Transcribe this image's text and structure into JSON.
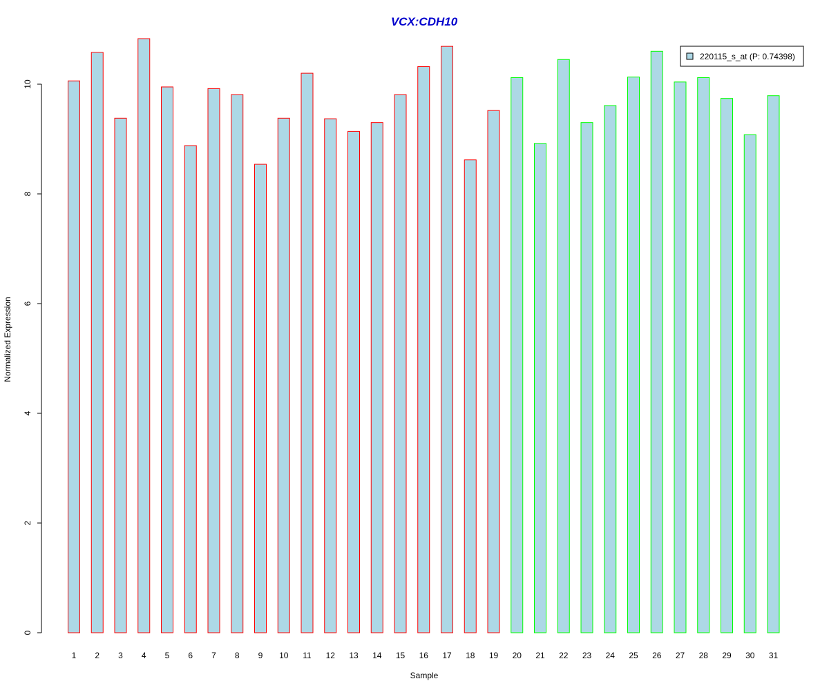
{
  "chart_data": {
    "type": "bar",
    "title": "VCX:CDH10",
    "xlabel": "Sample",
    "ylabel": "Normalized Expression",
    "ylim": [
      0,
      11
    ],
    "yticks": [
      0,
      2,
      4,
      6,
      8,
      10
    ],
    "grid": false,
    "legend_position": "top-right",
    "categories": [
      "1",
      "2",
      "3",
      "4",
      "5",
      "6",
      "7",
      "8",
      "9",
      "10",
      "11",
      "12",
      "13",
      "14",
      "15",
      "16",
      "17",
      "18",
      "19",
      "20",
      "21",
      "22",
      "23",
      "24",
      "25",
      "26",
      "27",
      "28",
      "29",
      "30",
      "31"
    ],
    "series": [
      {
        "name": "220115_s_at (P: 0.74398)",
        "values": [
          10.06,
          10.58,
          9.38,
          10.83,
          9.95,
          8.88,
          9.92,
          9.81,
          8.54,
          9.38,
          10.2,
          9.37,
          9.14,
          9.3,
          9.81,
          10.32,
          10.69,
          8.62,
          9.52,
          10.12,
          8.92,
          10.45,
          9.3,
          9.61,
          10.13,
          10.6,
          10.04,
          10.12,
          9.74,
          9.08,
          9.79
        ]
      }
    ],
    "group_borders": [
      "#ff0000",
      "#ff0000",
      "#ff0000",
      "#ff0000",
      "#ff0000",
      "#ff0000",
      "#ff0000",
      "#ff0000",
      "#ff0000",
      "#ff0000",
      "#ff0000",
      "#ff0000",
      "#ff0000",
      "#ff0000",
      "#ff0000",
      "#ff0000",
      "#ff0000",
      "#ff0000",
      "#ff0000",
      "#00ff00",
      "#00ff00",
      "#00ff00",
      "#00ff00",
      "#00ff00",
      "#00ff00",
      "#00ff00",
      "#00ff00",
      "#00ff00",
      "#00ff00",
      "#00ff00",
      "#00ff00"
    ],
    "colors": {
      "bar_fill": "#add8e6",
      "title": "#0000cd",
      "axis": "#000000"
    }
  }
}
